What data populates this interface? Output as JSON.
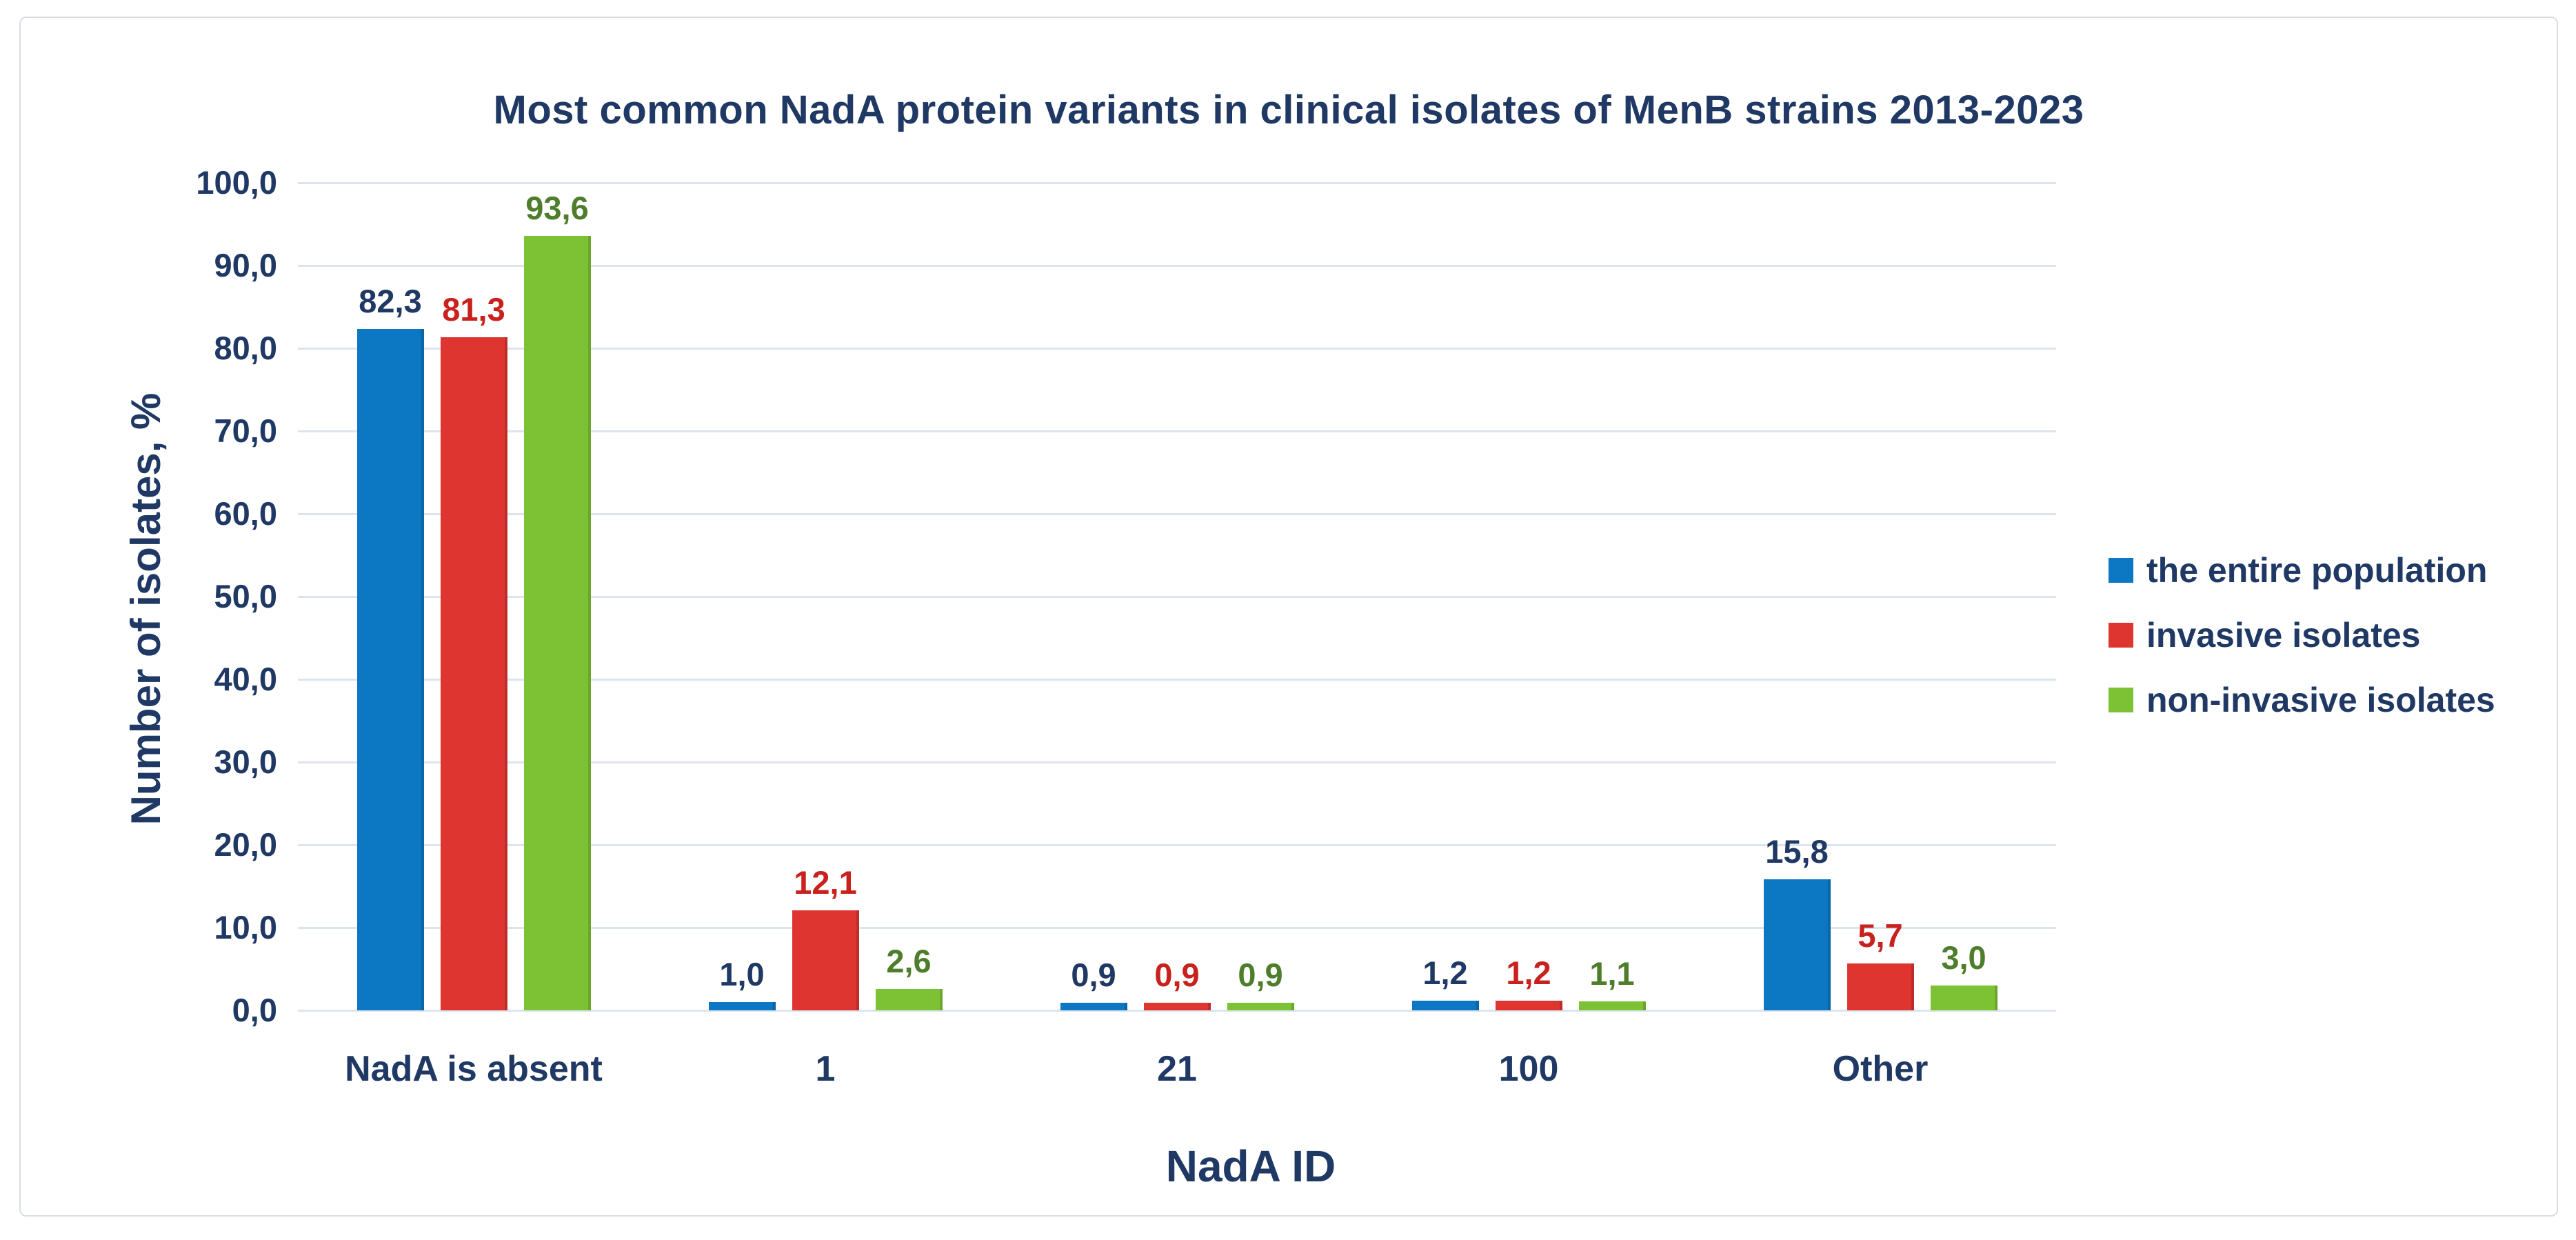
{
  "chart_data": {
    "type": "bar",
    "title": "Most common NadA protein variants in clinical isolates of MenB strains 2013-2023",
    "xlabel": "NadA ID",
    "ylabel": "Number of isolates, %",
    "categories": [
      "NadA is absent",
      "1",
      "21",
      "100",
      "Other"
    ],
    "series": [
      {
        "name": "the entire population",
        "color": "#0C77C2",
        "label_color": "#1F3864",
        "values": [
          82.3,
          1.0,
          0.9,
          1.2,
          15.8
        ],
        "labels": [
          "82,3",
          "1,0",
          "0,9",
          "1,2",
          "15,8"
        ]
      },
      {
        "name": "invasive isolates",
        "color": "#DE3531",
        "label_color": "#C9211E",
        "values": [
          81.3,
          12.1,
          0.9,
          1.2,
          5.7
        ],
        "labels": [
          "81,3",
          "12,1",
          "0,9",
          "1,2",
          "5,7"
        ]
      },
      {
        "name": "non-invasive isolates",
        "color": "#7DC235",
        "label_color": "#4E7E2B",
        "values": [
          93.6,
          2.6,
          0.9,
          1.1,
          3.0
        ],
        "labels": [
          "93,6",
          "2,6",
          "0,9",
          "1,1",
          "3,0"
        ]
      }
    ],
    "ylim": [
      0,
      100
    ],
    "ytick_step": 10,
    "ytick_labels": [
      "100,0",
      "90,0",
      "80,0",
      "70,0",
      "60,0",
      "50,0",
      "40,0",
      "30,0",
      "20,0",
      "10,0",
      "0,0"
    ],
    "grid": true,
    "legend_position": "right",
    "decimal_separator": ","
  },
  "colors": {
    "text": "#1F3864",
    "gridline": "#dce4ee",
    "card_border": "#d9dde2",
    "background": "#ffffff"
  }
}
